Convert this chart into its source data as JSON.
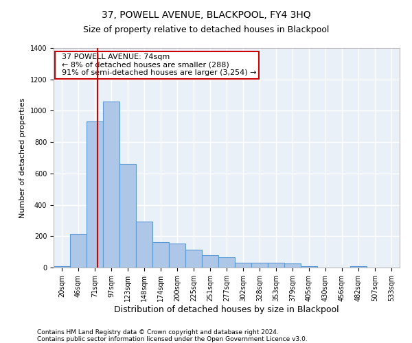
{
  "title": "37, POWELL AVENUE, BLACKPOOL, FY4 3HQ",
  "subtitle": "Size of property relative to detached houses in Blackpool",
  "xlabel": "Distribution of detached houses by size in Blackpool",
  "ylabel": "Number of detached properties",
  "footer_line1": "Contains HM Land Registry data © Crown copyright and database right 2024.",
  "footer_line2": "Contains public sector information licensed under the Open Government Licence v3.0.",
  "bar_labels": [
    "20sqm",
    "46sqm",
    "71sqm",
    "97sqm",
    "123sqm",
    "148sqm",
    "174sqm",
    "200sqm",
    "225sqm",
    "251sqm",
    "277sqm",
    "302sqm",
    "328sqm",
    "353sqm",
    "379sqm",
    "405sqm",
    "430sqm",
    "456sqm",
    "482sqm",
    "507sqm",
    "533sqm"
  ],
  "bar_values": [
    10,
    215,
    930,
    1060,
    660,
    295,
    160,
    155,
    115,
    80,
    65,
    30,
    30,
    30,
    25,
    10,
    0,
    0,
    10,
    0,
    0
  ],
  "bar_color": "#aec6e8",
  "bar_edge_color": "#5b9bd5",
  "background_color": "#eaf0f8",
  "grid_color": "#ffffff",
  "vline_x": 2.18,
  "vline_color": "#cc0000",
  "annotation_text": "  37 POWELL AVENUE: 74sqm\n  ← 8% of detached houses are smaller (288)\n  91% of semi-detached houses are larger (3,254) →",
  "annotation_box_color": "#ffffff",
  "annotation_box_edge_color": "#cc0000",
  "ylim": [
    0,
    1400
  ],
  "yticks": [
    0,
    200,
    400,
    600,
    800,
    1000,
    1200,
    1400
  ],
  "title_fontsize": 10,
  "subtitle_fontsize": 9,
  "ylabel_fontsize": 8,
  "xlabel_fontsize": 9,
  "tick_fontsize": 7,
  "annotation_fontsize": 8
}
